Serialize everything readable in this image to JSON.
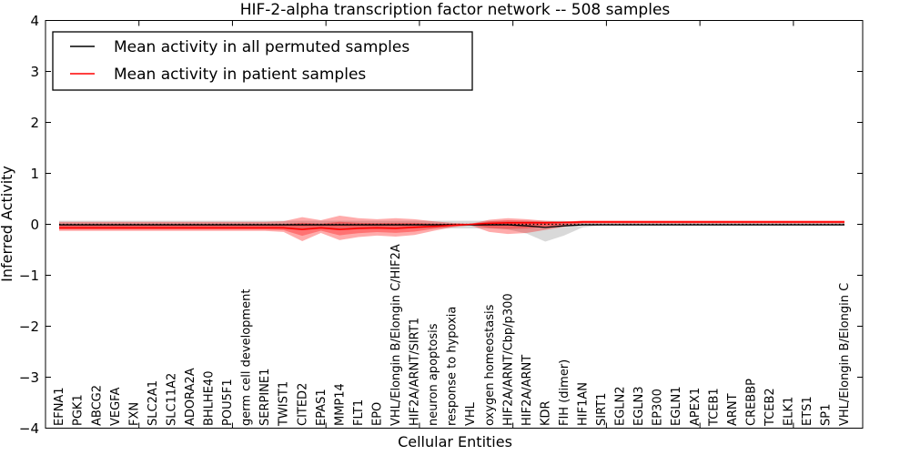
{
  "legend": {
    "position": "upper left",
    "items": [
      {
        "label": "Mean activity in all permuted samples",
        "color": "#000000"
      },
      {
        "label": "Mean activity in patient samples",
        "color": "#ff0000"
      }
    ]
  },
  "chart_data": {
    "type": "line",
    "title": "HIF-2-alpha transcription factor network -- 508 samples",
    "xlabel": "Cellular Entities",
    "ylabel": "Inferred Activity",
    "ylim": [
      -4,
      4
    ],
    "grid": false,
    "legend_position": "upper left",
    "ytick_labels": [
      "4",
      "3",
      "2",
      "1",
      "0",
      "−1",
      "−2",
      "−3",
      "−4"
    ],
    "baseline": {
      "y": 0,
      "style": "dotted",
      "color": "#000000"
    },
    "categories": [
      "EFNA1",
      "PGK1",
      "ABCG2",
      "VEGFA",
      "FXN",
      "SLC2A1",
      "SLC11A2",
      "ADORA2A",
      "BHLHE40",
      "POU5F1",
      "germ cell development",
      "SERPINE1",
      "TWIST1",
      "CITED2",
      "EPAS1",
      "MMP14",
      "FLT1",
      "EPO",
      "VHL/Elongin B/Elongin C/HIF2A",
      "HIF2A/ARNT/SIRT1",
      "neuron apoptosis",
      "response to hypoxia",
      "VHL",
      "oxygen homeostasis",
      "HIF2A/ARNT/Cbp/p300",
      "HIF2A/ARNT",
      "KDR",
      "FIH (dimer)",
      "HIF1AN",
      "SIRT1",
      "EGLN2",
      "EGLN3",
      "EP300",
      "EGLN1",
      "APEX1",
      "TCEB1",
      "ARNT",
      "CREBBP",
      "TCEB2",
      "ELK1",
      "ETS1",
      "SP1",
      "VHL/Elongin B/Elongin C"
    ],
    "series": [
      {
        "name": "Mean activity in all permuted samples",
        "kind": "line",
        "color": "#000000",
        "values": [
          -0.01,
          -0.01,
          -0.01,
          -0.01,
          -0.01,
          -0.01,
          -0.01,
          -0.01,
          -0.01,
          -0.01,
          -0.01,
          -0.01,
          -0.01,
          -0.01,
          -0.01,
          -0.01,
          -0.01,
          -0.01,
          -0.01,
          -0.01,
          -0.01,
          -0.01,
          -0.01,
          -0.01,
          -0.01,
          -0.03,
          -0.06,
          -0.03,
          -0.01,
          -0.01,
          -0.01,
          -0.01,
          -0.01,
          -0.01,
          -0.01,
          -0.01,
          -0.01,
          -0.01,
          -0.01,
          -0.01,
          -0.01,
          -0.01,
          -0.01
        ]
      },
      {
        "name": "Mean activity in patient samples",
        "kind": "line",
        "color": "#ff0000",
        "values": [
          -0.07,
          -0.07,
          -0.07,
          -0.07,
          -0.07,
          -0.07,
          -0.07,
          -0.07,
          -0.07,
          -0.07,
          -0.07,
          -0.07,
          -0.07,
          -0.1,
          -0.07,
          -0.1,
          -0.08,
          -0.07,
          -0.08,
          -0.06,
          -0.04,
          -0.02,
          0.0,
          0.02,
          0.03,
          0.03,
          0.03,
          0.04,
          0.045,
          0.045,
          0.045,
          0.045,
          0.045,
          0.045,
          0.045,
          0.045,
          0.045,
          0.045,
          0.045,
          0.045,
          0.045,
          0.045,
          0.045
        ]
      },
      {
        "name": "Permuted samples activity spread",
        "kind": "band",
        "color": "#808080",
        "opacity": 0.3,
        "upper": [
          0.07,
          0.07,
          0.07,
          0.07,
          0.07,
          0.07,
          0.07,
          0.07,
          0.07,
          0.07,
          0.07,
          0.07,
          0.07,
          0.07,
          0.07,
          0.07,
          0.07,
          0.07,
          0.07,
          0.07,
          0.07,
          0.07,
          0.07,
          0.07,
          0.07,
          0.07,
          0.07,
          0.07,
          0.03,
          0.03,
          0.03,
          0.03,
          0.03,
          0.03,
          0.03,
          0.03,
          0.03,
          0.03,
          0.03,
          0.03,
          0.03,
          0.03,
          0.03
        ],
        "lower": [
          -0.08,
          -0.08,
          -0.08,
          -0.08,
          -0.08,
          -0.08,
          -0.08,
          -0.08,
          -0.08,
          -0.08,
          -0.08,
          -0.08,
          -0.08,
          -0.08,
          -0.08,
          -0.08,
          -0.08,
          -0.08,
          -0.08,
          -0.08,
          -0.08,
          -0.08,
          -0.08,
          -0.08,
          -0.1,
          -0.18,
          -0.34,
          -0.22,
          -0.06,
          -0.02,
          -0.02,
          -0.02,
          -0.02,
          -0.02,
          -0.02,
          -0.02,
          -0.02,
          -0.02,
          -0.02,
          -0.02,
          -0.02,
          -0.02,
          -0.02
        ]
      },
      {
        "name": "Patient samples activity spread",
        "kind": "band",
        "color": "#ff0000",
        "opacity": 0.33,
        "inner_band_scale": 0.55,
        "upper": [
          0.05,
          0.05,
          0.05,
          0.05,
          0.05,
          0.05,
          0.05,
          0.05,
          0.05,
          0.05,
          0.05,
          0.05,
          0.06,
          0.14,
          0.08,
          0.17,
          0.12,
          0.1,
          0.12,
          0.1,
          0.06,
          0.03,
          0.01,
          0.09,
          0.12,
          0.1,
          0.07,
          0.05,
          0.075,
          0.075,
          0.075,
          0.075,
          0.075,
          0.075,
          0.075,
          0.075,
          0.075,
          0.075,
          0.075,
          0.075,
          0.075,
          0.075,
          0.075
        ],
        "lower": [
          -0.13,
          -0.13,
          -0.13,
          -0.13,
          -0.13,
          -0.13,
          -0.13,
          -0.13,
          -0.13,
          -0.13,
          -0.13,
          -0.13,
          -0.15,
          -0.33,
          -0.17,
          -0.31,
          -0.25,
          -0.22,
          -0.24,
          -0.21,
          -0.13,
          -0.06,
          -0.02,
          -0.15,
          -0.19,
          -0.17,
          -0.11,
          -0.05,
          0.015,
          0.015,
          0.015,
          0.015,
          0.015,
          0.015,
          0.015,
          0.015,
          0.015,
          0.015,
          0.015,
          0.015,
          0.015,
          0.015,
          0.015
        ]
      }
    ]
  }
}
